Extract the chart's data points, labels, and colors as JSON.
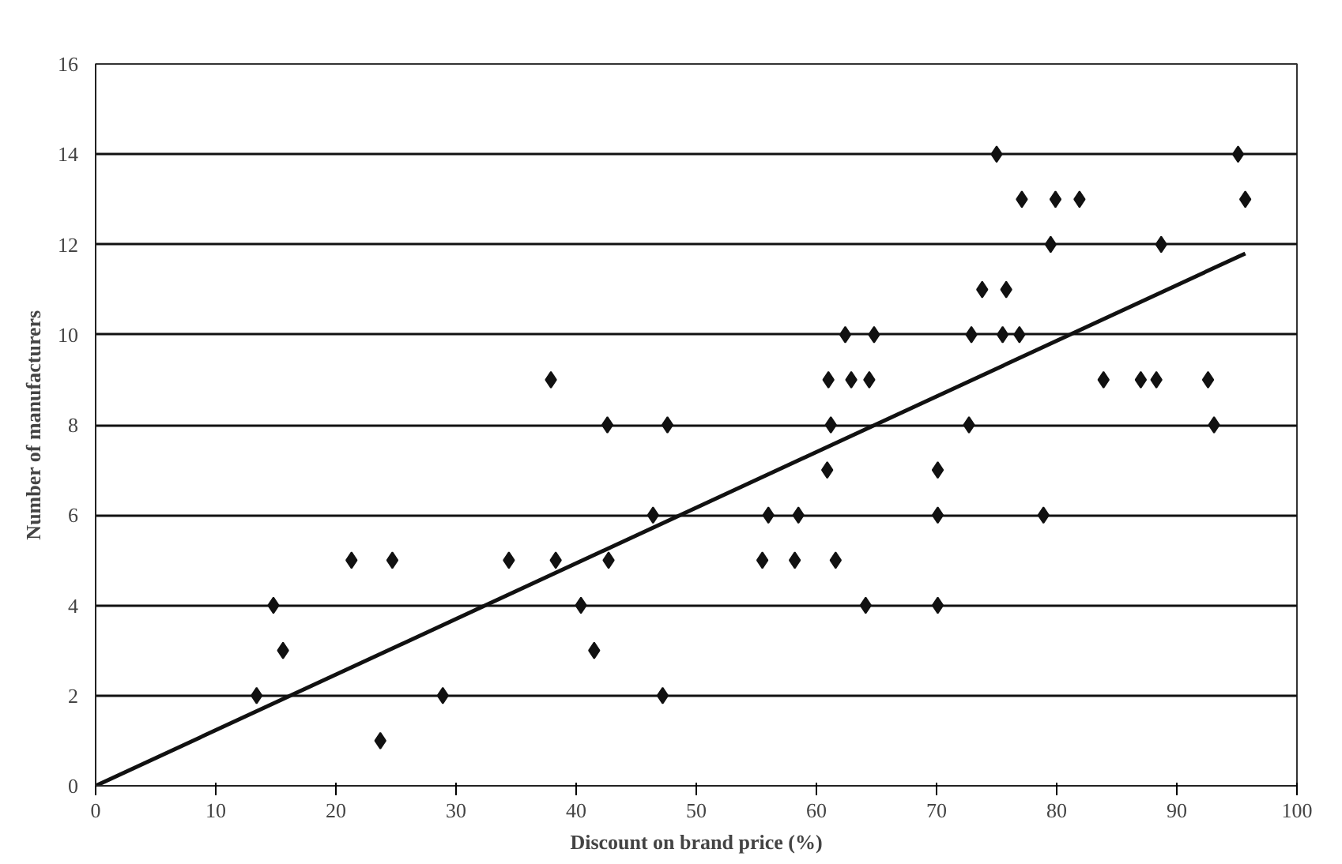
{
  "chart_data": {
    "type": "scatter",
    "xlabel": "Discount on brand price (%)",
    "ylabel": "Number of manufacturers",
    "xlim": [
      0,
      100
    ],
    "xticks": [
      0,
      10,
      20,
      30,
      40,
      50,
      60,
      70,
      80,
      90,
      100
    ],
    "ylim": [
      0,
      16
    ],
    "yticks": [
      0,
      2,
      4,
      6,
      8,
      10,
      12,
      14,
      16
    ],
    "grid": "y",
    "series": [
      {
        "color": "#111111",
        "marker": "diamond",
        "x": [
          13.4,
          14.8,
          15.6,
          21.3,
          23.7,
          24.7,
          28.9,
          34.4,
          37.9,
          38.3,
          40.4,
          41.5,
          42.6,
          42.7,
          46.4,
          47.2,
          47.6,
          55.5,
          56.0,
          58.2,
          58.5,
          60.9,
          61.0,
          61.2,
          61.6,
          62.4,
          62.9,
          64.1,
          64.4,
          64.8,
          70.1,
          70.1,
          70.1,
          72.7,
          72.9,
          73.8,
          75.0,
          75.5,
          75.8,
          76.9,
          77.1,
          78.9,
          79.5,
          79.9,
          81.9,
          83.9,
          87.0,
          88.3,
          88.7,
          92.6,
          93.1,
          95.1,
          95.7
        ],
        "values": [
          2,
          4,
          3,
          5,
          1,
          5,
          2,
          5,
          9,
          5,
          4,
          3,
          8,
          5,
          6,
          2,
          8,
          5,
          6,
          5,
          6,
          7,
          9,
          8,
          5,
          10,
          9,
          4,
          9,
          10,
          7,
          6,
          4,
          8,
          10,
          11,
          14,
          10,
          11,
          10,
          13,
          6,
          12,
          13,
          13,
          9,
          9,
          9,
          12,
          9,
          8,
          14,
          13
        ]
      },
      {
        "type": "line",
        "color": "#111111",
        "x": [
          0,
          95.7
        ],
        "values": [
          0,
          11.8
        ]
      }
    ]
  }
}
